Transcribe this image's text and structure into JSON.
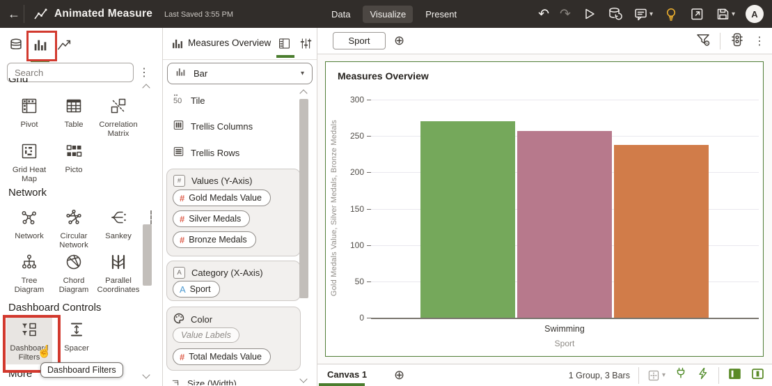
{
  "header": {
    "title": "Animated Measure",
    "last_saved": "Last Saved 3:55 PM",
    "tabs": [
      "Data",
      "Visualize",
      "Present"
    ],
    "active_tab": "Visualize",
    "avatar_initial": "A"
  },
  "glyphs": {
    "back": "←",
    "undo": "↶",
    "redo": "↷",
    "play": "▷",
    "kebab": "⋮",
    "plus_circle": "⊕",
    "caret_down": "▾",
    "pointer_hand": "☝"
  },
  "viz_panel": {
    "search_placeholder": "Search",
    "sections": {
      "grid": {
        "title": "Grid",
        "items": [
          "Pivot",
          "Table",
          "Correlation Matrix",
          "Grid Heat Map",
          "Picto"
        ]
      },
      "network": {
        "title": "Network",
        "items": [
          "Network",
          "Circular Network",
          "Sankey",
          "Tree Diagram",
          "Chord Diagram",
          "Parallel Coordinates"
        ]
      },
      "dashboard_controls": {
        "title": "Dashboard Controls",
        "items": [
          "Dashboard Filters",
          "Spacer"
        ]
      },
      "more": {
        "title": "More"
      }
    },
    "tooltip": "Dashboard Filters"
  },
  "grammar": {
    "title": "Measures Overview",
    "viz_type": "Bar",
    "rows": [
      "Tile",
      "Trellis Columns",
      "Trellis Rows"
    ],
    "values": {
      "label": "Values (Y-Axis)",
      "pills": [
        {
          "icon": "number-icon",
          "label": "Gold Medals Value"
        },
        {
          "icon": "number-icon",
          "label": "Silver Medals"
        },
        {
          "icon": "number-icon",
          "label": "Bronze Medals"
        }
      ]
    },
    "category": {
      "label": "Category (X-Axis)",
      "pills": [
        {
          "icon": "text-icon",
          "label": "Sport"
        }
      ]
    },
    "color": {
      "label": "Color",
      "placeholder": "Value Labels",
      "pills": [
        {
          "icon": "number-icon",
          "label": "Total Medals Value"
        }
      ]
    },
    "size": {
      "label": "Size (Width)"
    }
  },
  "canvas": {
    "filter_chip": "Sport",
    "canvas_tab": "Canvas 1",
    "status": "1 Group, 3 Bars"
  },
  "chart_data": {
    "type": "bar",
    "title": "Measures Overview",
    "categories": [
      "Swimming"
    ],
    "series": [
      {
        "name": "Gold Medals Value",
        "values": [
          270
        ],
        "color": "#75a85b"
      },
      {
        "name": "Silver Medals",
        "values": [
          257
        ],
        "color": "#b7798c"
      },
      {
        "name": "Bronze Medals",
        "values": [
          238
        ],
        "color": "#d17c49"
      }
    ],
    "xlabel": "Sport",
    "ylabel": "Gold Medals Value, Silver Medals, Bronze Medals",
    "ylim": [
      0,
      300
    ],
    "yticks": [
      0,
      50,
      100,
      150,
      200,
      250,
      300
    ],
    "grid": true,
    "legend": "none"
  },
  "colors": {
    "accent_green": "#4a7d2e",
    "selection_border": "#4f7d35",
    "annotation_red": "#d2392e",
    "header_bg": "#312d2a",
    "number_icon": "#de5f4c",
    "text_icon_blue": "#4d9ad0",
    "bulb_yellow": "#efb12e",
    "bar_green": "#75a85b",
    "bar_mauve": "#b7798c",
    "bar_orange": "#d17c49"
  }
}
